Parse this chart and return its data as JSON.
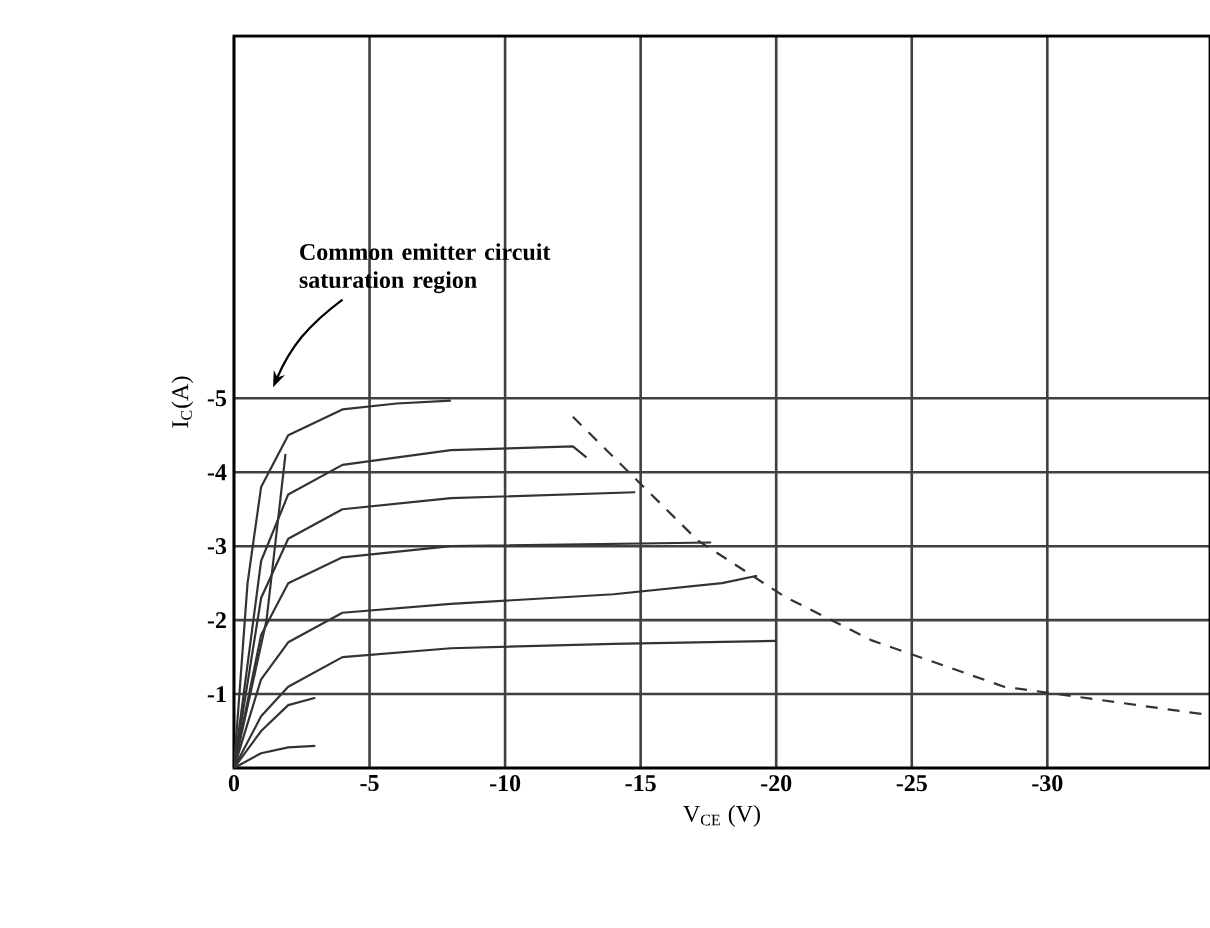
{
  "chart_data": {
    "type": "line",
    "xlabel": "V$_{CE}$ (V)",
    "ylabel": "I$_{C}$(A)",
    "xlim": [
      0,
      -36
    ],
    "ylim": [
      0,
      -9.9
    ],
    "xticks": [
      0,
      -5,
      -10,
      -15,
      -20,
      -25,
      -30
    ],
    "yticks": [
      -1,
      -2,
      -3,
      -4,
      -5
    ],
    "grid": true,
    "marker": "none",
    "line_style": "solid",
    "annotations": [
      "Common emitter circuit saturation region"
    ],
    "series": [
      {
        "color": "#333333",
        "x": [
          0,
          -0.5,
          -1,
          -2,
          -4,
          -6,
          -8
        ],
        "values": [
          0,
          -2.5,
          -3.8,
          -4.5,
          -4.85,
          -4.93,
          -4.97
        ]
      },
      {
        "color": "#333333",
        "x": [
          0,
          -1,
          -2,
          -4,
          -8,
          -12.5,
          -13
        ],
        "values": [
          0,
          -2.8,
          -3.7,
          -4.1,
          -4.3,
          -4.35,
          -4.2
        ]
      },
      {
        "color": "#333333",
        "x": [
          0,
          -1,
          -2,
          -4,
          -8,
          -14.8
        ],
        "values": [
          0,
          -2.3,
          -3.1,
          -3.5,
          -3.65,
          -3.73
        ]
      },
      {
        "color": "#333333",
        "x": [
          0,
          -1,
          -2,
          -4,
          -8,
          -17.6
        ],
        "values": [
          0,
          -1.8,
          -2.5,
          -2.85,
          -3.0,
          -3.05
        ]
      },
      {
        "color": "#333333",
        "x": [
          0,
          -1,
          -2,
          -4,
          -8,
          -14,
          -18,
          -19.3
        ],
        "values": [
          0,
          -1.2,
          -1.7,
          -2.1,
          -2.22,
          -2.35,
          -2.5,
          -2.6
        ]
      },
      {
        "color": "#333333",
        "x": [
          0,
          -1,
          -2,
          -4,
          -8,
          -14,
          -20
        ],
        "values": [
          0,
          -0.7,
          -1.1,
          -1.5,
          -1.62,
          -1.68,
          -1.72
        ]
      },
      {
        "color": "#333333",
        "x": [
          0,
          -1,
          -2,
          -3
        ],
        "values": [
          0,
          -0.5,
          -0.85,
          -0.95
        ]
      },
      {
        "color": "#333333",
        "x": [
          0,
          -1,
          -2,
          -3
        ],
        "values": [
          0,
          -0.2,
          -0.28,
          -0.3
        ]
      },
      {
        "color": "#333333",
        "x": [
          0,
          -0.6,
          -1.2,
          -1.7,
          -1.9
        ],
        "values": [
          0,
          -1.0,
          -2.0,
          -3.6,
          -4.25
        ]
      },
      {
        "color": "#333333",
        "line_style": "dashed",
        "x": [
          -12.5,
          -17.1,
          -20.3,
          -23.5,
          -28.4,
          -35.7
        ],
        "values": [
          -4.75,
          -3.08,
          -2.32,
          -1.73,
          -1.1,
          -0.73
        ]
      }
    ]
  }
}
